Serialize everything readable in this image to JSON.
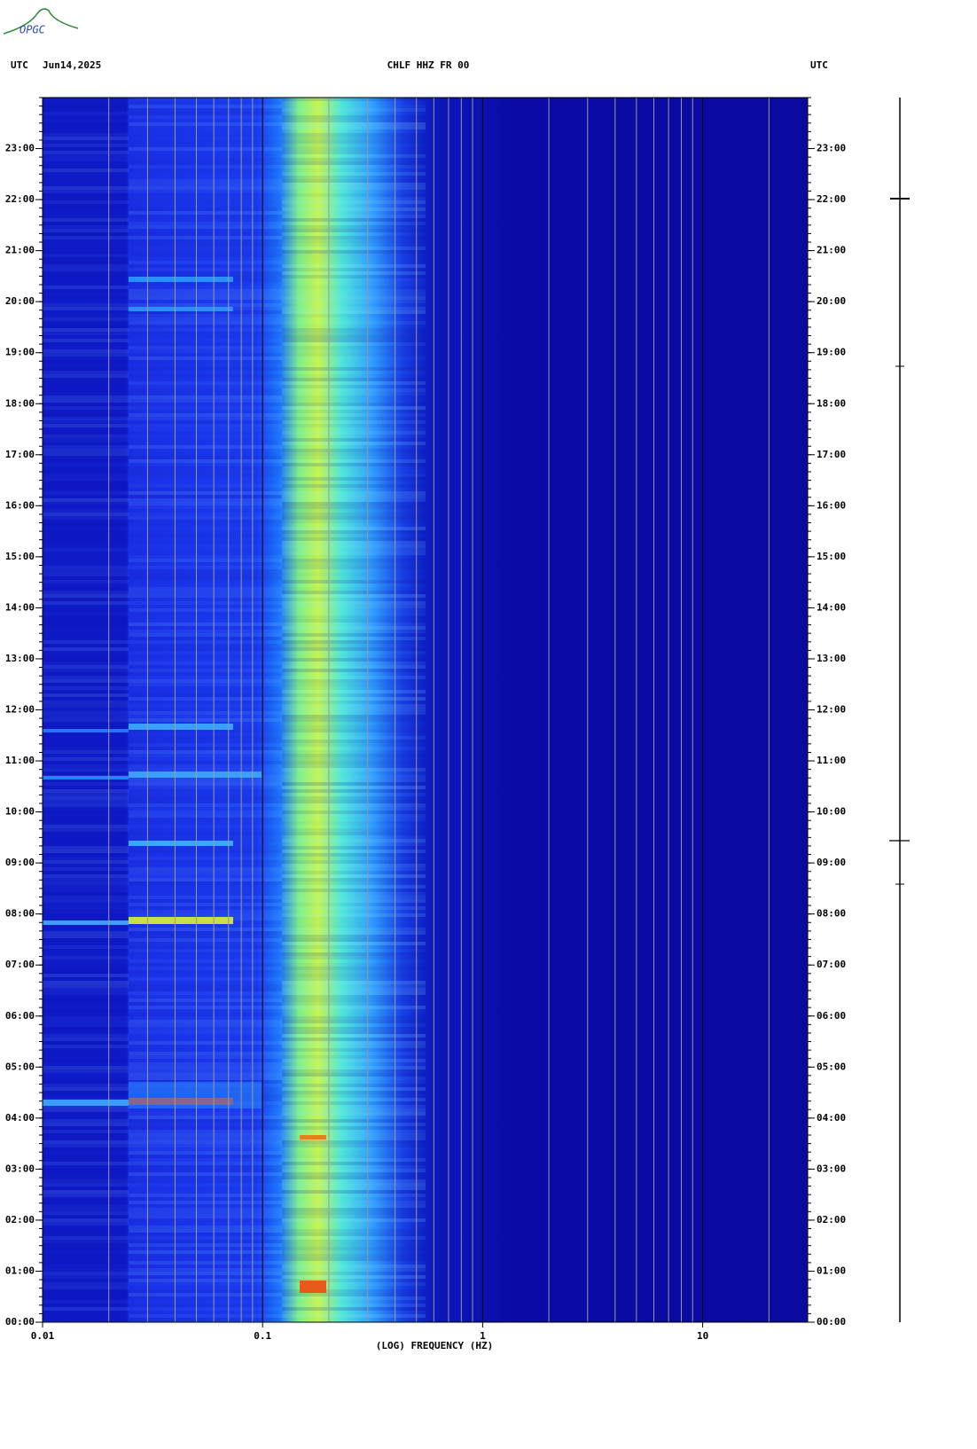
{
  "chart_data": {
    "type": "spectrogram",
    "logo": "OPGC",
    "left_label": "UTC",
    "date": "Jun14,2025",
    "title": "CHLF HHZ FR 00",
    "right_label": "UTC",
    "xlabel": "(LOG) FREQUENCY (HZ)",
    "xscale": "log",
    "xlim": [
      0.01,
      30
    ],
    "xticks": [
      0.01,
      0.1,
      1,
      10
    ],
    "xgrid": [
      0.02,
      0.03,
      0.04,
      0.05,
      0.06,
      0.07,
      0.08,
      0.09,
      0.2,
      0.3,
      0.4,
      0.5,
      0.6,
      0.7,
      0.8,
      0.9,
      2,
      3,
      4,
      5,
      6,
      7,
      8,
      9,
      20
    ],
    "ylim": [
      0,
      24
    ],
    "yticks": [
      {
        "value": 0,
        "label": "00:00"
      },
      {
        "value": 1,
        "label": "01:00"
      },
      {
        "value": 2,
        "label": "02:00"
      },
      {
        "value": 3,
        "label": "03:00"
      },
      {
        "value": 4,
        "label": "04:00"
      },
      {
        "value": 5,
        "label": "05:00"
      },
      {
        "value": 6,
        "label": "06:00"
      },
      {
        "value": 7,
        "label": "07:00"
      },
      {
        "value": 8,
        "label": "08:00"
      },
      {
        "value": 9,
        "label": "09:00"
      },
      {
        "value": 10,
        "label": "10:00"
      },
      {
        "value": 11,
        "label": "11:00"
      },
      {
        "value": 12,
        "label": "12:00"
      },
      {
        "value": 13,
        "label": "13:00"
      },
      {
        "value": 14,
        "label": "14:00"
      },
      {
        "value": 15,
        "label": "15:00"
      },
      {
        "value": 16,
        "label": "16:00"
      },
      {
        "value": 17,
        "label": "17:00"
      },
      {
        "value": 18,
        "label": "18:00"
      },
      {
        "value": 19,
        "label": "19:00"
      },
      {
        "value": 20,
        "label": "20:00"
      },
      {
        "value": 21,
        "label": "21:00"
      },
      {
        "value": 22,
        "label": "22:00"
      },
      {
        "value": 23,
        "label": "23:00"
      }
    ]
  }
}
